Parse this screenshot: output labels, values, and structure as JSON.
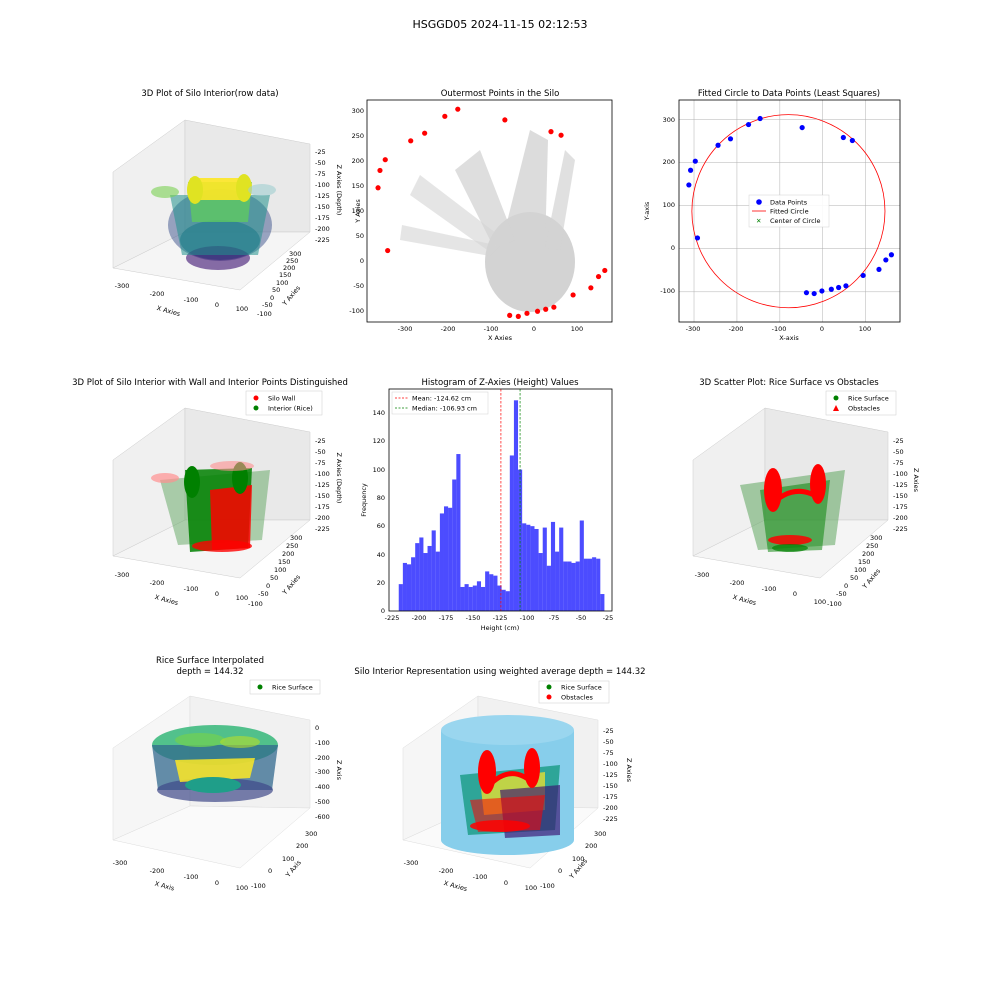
{
  "figure": {
    "suptitle": "HSGGD05 2024-11-15 02:12:53"
  },
  "panels": {
    "p1": {
      "title": "3D Plot of Silo Interior(row data)",
      "xlabel": "X Axies",
      "ylabel": "Y Axies",
      "zlabel": "Z Axies (Depth)",
      "xticks": [
        "-300",
        "-200",
        "-100",
        "0",
        "100"
      ],
      "yticks": [
        "-100",
        "-50",
        "0",
        "50",
        "100",
        "150",
        "200",
        "250",
        "300"
      ],
      "zticks": [
        "-25",
        "-50",
        "-75",
        "-100",
        "-125",
        "-150",
        "-175",
        "-200",
        "-225"
      ]
    },
    "p2": {
      "title": "Outermost Points in the Silo",
      "xlabel": "X Axies",
      "ylabel": "Y Axies",
      "xticks": [
        "-300",
        "-200",
        "-100",
        "0",
        "100"
      ],
      "yticks": [
        "-100",
        "-50",
        "0",
        "50",
        "100",
        "150",
        "200",
        "250",
        "300"
      ]
    },
    "p3": {
      "title": "Fitted Circle to Data Points (Least Squares)",
      "xlabel": "X-axis",
      "ylabel": "Y-axis",
      "xticks": [
        "-300",
        "-200",
        "-100",
        "0",
        "100"
      ],
      "yticks": [
        "-100",
        "0",
        "100",
        "200",
        "300"
      ],
      "legend": [
        "Data Points",
        "Fitted Circle",
        "Center of Circle"
      ]
    },
    "p4": {
      "title": "3D Plot of Silo Interior with Wall and Interior Points Distinguished",
      "xlabel": "X Axies",
      "ylabel": "Y Axies",
      "zlabel": "Z Axies (Depth)",
      "xticks": [
        "-300",
        "-200",
        "-100",
        "0",
        "100"
      ],
      "yticks": [
        "-100",
        "-50",
        "0",
        "50",
        "100",
        "150",
        "200",
        "250",
        "300"
      ],
      "zticks": [
        "-25",
        "-50",
        "-75",
        "-100",
        "-125",
        "-150",
        "-175",
        "-200",
        "-225"
      ],
      "legend": [
        "Silo Wall",
        "Interior (Rice)"
      ]
    },
    "p5": {
      "title": "Histogram of Z-Axies (Height) Values",
      "xlabel": "Height (cm)",
      "ylabel": "Frequency",
      "xticks": [
        "-225",
        "-200",
        "-175",
        "-150",
        "-125",
        "-100",
        "-75",
        "-50",
        "-25"
      ],
      "yticks": [
        "0",
        "20",
        "40",
        "60",
        "80",
        "100",
        "120",
        "140"
      ],
      "legend": [
        "Mean: -124.62 cm",
        "Median: -106.93 cm"
      ]
    },
    "p6": {
      "title": "3D Scatter Plot: Rice Surface vs Obstacles",
      "xlabel": "X Axies",
      "ylabel": "Y Axies",
      "zlabel": "Z Axies",
      "xticks": [
        "-300",
        "-200",
        "-100",
        "0",
        "100"
      ],
      "yticks": [
        "-100",
        "-50",
        "0",
        "50",
        "100",
        "150",
        "200",
        "250",
        "300"
      ],
      "zticks": [
        "-25",
        "-50",
        "-75",
        "-100",
        "-125",
        "-150",
        "-175",
        "-200",
        "-225"
      ],
      "legend": [
        "Rice Surface",
        "Obstacles"
      ]
    },
    "p7": {
      "title": "Rice Surface Interpolated",
      "subtitle": "depth = 144.32",
      "xlabel": "X Axis",
      "ylabel": "Y Axis",
      "zlabel": "Z Axis",
      "xticks": [
        "-300",
        "-200",
        "-100",
        "0",
        "100"
      ],
      "yticks": [
        "-100",
        "0",
        "100",
        "200",
        "300"
      ],
      "zticks": [
        "0",
        "-100",
        "-200",
        "-300",
        "-400",
        "-500",
        "-600"
      ],
      "legend": [
        "Rice Surface"
      ]
    },
    "p8": {
      "title": "Silo Interior Representation using weighted average depth = 144.32",
      "xlabel": "X Axies",
      "ylabel": "Y Axies",
      "zlabel": "Z Axies",
      "xticks": [
        "-300",
        "-200",
        "-100",
        "0",
        "100"
      ],
      "yticks": [
        "-100",
        "0",
        "100",
        "200",
        "300"
      ],
      "zticks": [
        "-25",
        "-50",
        "-75",
        "-100",
        "-125",
        "-150",
        "-175",
        "-200",
        "-225"
      ],
      "legend": [
        "Rice Surface",
        "Obstacles"
      ]
    }
  },
  "chart_data": [
    {
      "type": "scatter",
      "panel": "p2",
      "series": [
        {
          "name": "",
          "color": "#ff0000",
          "x": [
            -312,
            -308,
            -297,
            -292,
            -244,
            -215,
            -173,
            -146,
            -48,
            48,
            69,
            94,
            131,
            147,
            160,
            54,
            37,
            20,
            -2,
            -20,
            -38
          ],
          "y": [
            148,
            182,
            203,
            25,
            240,
            255,
            288,
            302,
            281,
            258,
            251,
            -62,
            -48,
            -26,
            -14,
            -86,
            -90,
            -94,
            -98,
            -104,
            -102
          ]
        }
      ],
      "xlim": [
        -335,
        175
      ],
      "ylim": [
        -115,
        320
      ],
      "grid": false
    },
    {
      "type": "scatter",
      "panel": "p3",
      "series": [
        {
          "name": "Data Points",
          "color": "#0000ff",
          "x": [
            -312,
            -308,
            -297,
            -292,
            -244,
            -215,
            -173,
            -146,
            -48,
            48,
            69,
            94,
            131,
            147,
            160,
            54,
            37,
            20,
            -2,
            -20,
            -38
          ],
          "y": [
            148,
            182,
            203,
            25,
            240,
            255,
            288,
            302,
            281,
            258,
            251,
            -62,
            -48,
            -26,
            -14,
            -86,
            -90,
            -94,
            -98,
            -104,
            -102
          ]
        }
      ],
      "fitted_circle": {
        "center": [
          -80,
          87
        ],
        "radius": 225,
        "color": "#ff0000"
      },
      "xlim": [
        -335,
        180
      ],
      "ylim": [
        -170,
        345
      ],
      "grid": true,
      "legend_position": "center"
    },
    {
      "type": "bar",
      "panel": "p5",
      "bin_edges_start": -219,
      "bin_width": 3.8,
      "values": [
        19,
        34,
        33,
        38,
        48,
        52,
        41,
        46,
        57,
        42,
        69,
        74,
        73,
        93,
        111,
        17,
        19,
        17,
        18,
        21,
        17,
        28,
        26,
        25,
        18,
        15,
        14,
        110,
        149,
        100,
        62,
        61,
        60,
        58,
        41,
        59,
        32,
        63,
        42,
        59,
        35,
        35,
        34,
        35,
        64,
        37,
        37,
        38,
        37,
        12
      ],
      "color": "#0000ff",
      "mean": -124.62,
      "median": -106.93,
      "xlim": [
        -228,
        -22
      ],
      "ylim": [
        0,
        157
      ],
      "grid": false,
      "legend_position": "upper-left"
    }
  ]
}
